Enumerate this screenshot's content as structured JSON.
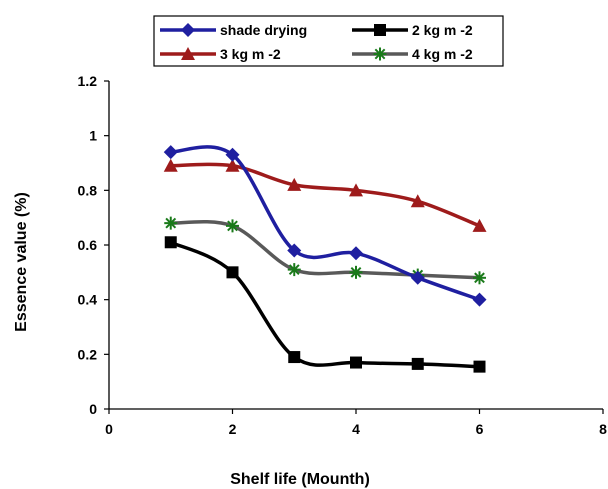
{
  "chart_data": {
    "type": "line",
    "xlabel": "Shelf life (Mounth)",
    "ylabel": "Essence value (%)",
    "xlim": [
      0,
      8
    ],
    "ylim": [
      0,
      1.2
    ],
    "xticks": [
      "0",
      "2",
      "4",
      "6",
      "8"
    ],
    "yticks": [
      "0",
      "0.2",
      "0.4",
      "0.6",
      "0.8",
      "1",
      "1.2"
    ],
    "grid": false,
    "legend_position": "top",
    "series": [
      {
        "name": "shade drying",
        "color": "#1f1fa0",
        "marker": "diamond",
        "x": [
          1,
          2,
          3,
          4,
          5,
          6
        ],
        "y": [
          0.94,
          0.93,
          0.58,
          0.57,
          0.48,
          0.4
        ]
      },
      {
        "name": "2 kg m -2",
        "color": "#000000",
        "marker": "square",
        "x": [
          1,
          2,
          3,
          4,
          5,
          6
        ],
        "y": [
          0.61,
          0.5,
          0.19,
          0.17,
          0.165,
          0.155
        ]
      },
      {
        "name": "3 kg m -2",
        "color": "#9e1b1b",
        "marker": "triangle",
        "x": [
          1,
          2,
          3,
          4,
          5,
          6
        ],
        "y": [
          0.89,
          0.89,
          0.82,
          0.8,
          0.76,
          0.67
        ]
      },
      {
        "name": "4 kg m -2",
        "color": "#595959",
        "marker": "star",
        "x": [
          1,
          2,
          3,
          4,
          5,
          6
        ],
        "y": [
          0.68,
          0.67,
          0.51,
          0.5,
          0.49,
          0.48
        ]
      }
    ]
  }
}
